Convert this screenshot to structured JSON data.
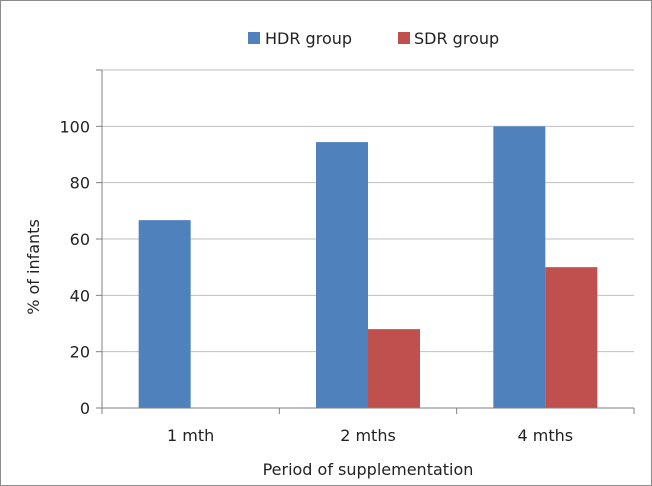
{
  "chart_data": {
    "type": "bar",
    "title": "",
    "xlabel": "Period of supplementation",
    "ylabel": "% of infants",
    "categories": [
      "1 mth",
      "2 mths",
      "4 mths"
    ],
    "series": [
      {
        "name": "HDR group",
        "color": "#4f81bd",
        "values": [
          66.7,
          94.4,
          100
        ]
      },
      {
        "name": "SDR group",
        "color": "#c0504d",
        "values": [
          0,
          28.0,
          50.0
        ]
      }
    ],
    "ylim": [
      0,
      120
    ],
    "yticks": [
      0,
      20,
      40,
      60,
      80,
      100
    ],
    "grid": true,
    "legend_position": "top-center"
  }
}
